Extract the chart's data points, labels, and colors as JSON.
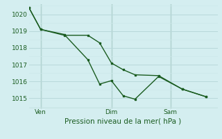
{
  "background_color": "#d4eef0",
  "grid_color_major": "#b8d8da",
  "grid_color_minor": "#cce8ea",
  "line_color": "#1a5c20",
  "text_color": "#1a5c20",
  "xlabel": "Pression niveau de la mer( hPa )",
  "ylim": [
    1014.4,
    1020.6
  ],
  "yticks": [
    1015,
    1016,
    1017,
    1018,
    1019,
    1020
  ],
  "xlim": [
    0,
    48
  ],
  "x_tick_positions": [
    3,
    21,
    36
  ],
  "x_tick_labels": [
    "Ven",
    "Dim",
    "Sam"
  ],
  "x_vlines": [
    3,
    21,
    36
  ],
  "series1_x": [
    0,
    3,
    9,
    15,
    18,
    21,
    24,
    27,
    33,
    39,
    45
  ],
  "series1_y": [
    1020.4,
    1019.1,
    1018.8,
    1017.3,
    1015.85,
    1016.05,
    1015.15,
    1014.95,
    1016.3,
    1015.55,
    1015.1
  ],
  "series2_x": [
    0,
    3,
    9,
    15,
    18,
    21,
    24,
    27,
    33,
    39,
    45
  ],
  "series2_y": [
    1020.4,
    1019.1,
    1018.75,
    1018.75,
    1018.3,
    1017.1,
    1016.7,
    1016.4,
    1016.35,
    1015.55,
    1015.1
  ],
  "xlabel_fontsize": 7.5,
  "tick_fontsize": 6.5,
  "linewidth": 1.0,
  "markersize": 2.0
}
